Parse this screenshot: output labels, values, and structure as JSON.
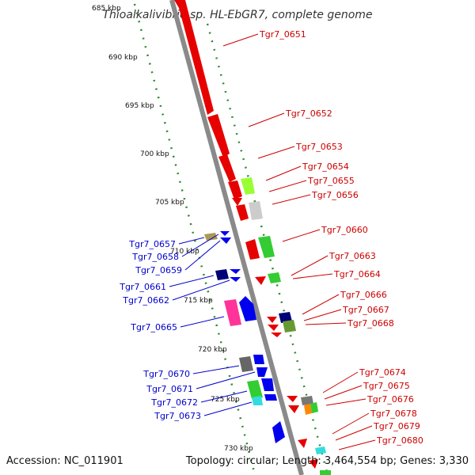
{
  "title": "Thioalkalivibrio sp. HL-EbGR7, complete genome",
  "accession": "Accession: NC_011901",
  "topology": "Topology: circular; Length: 3,464,554 bp; Genes: 3,330",
  "colors": {
    "forward_label": "#cc0000",
    "reverse_label": "#0000cc",
    "backbone": "#888888",
    "ticks": "#2e8b2e"
  },
  "ticks": [
    "685 kbp",
    "690 kbp",
    "695 kbp",
    "700 kbp",
    "705 kbp",
    "710 kbp",
    "715 kbp",
    "720 kbp",
    "725 kbp",
    "730 kbp"
  ],
  "forward_labels": [
    "Tgr7_0651",
    "Tgr7_0652",
    "Tgr7_0653",
    "Tgr7_0654",
    "Tgr7_0655",
    "Tgr7_0656",
    "Tgr7_0660",
    "Tgr7_0663",
    "Tgr7_0664",
    "Tgr7_0666",
    "Tgr7_0667",
    "Tgr7_0668",
    "Tgr7_0674",
    "Tgr7_0675",
    "Tgr7_0676",
    "Tgr7_0678",
    "Tgr7_0679",
    "Tgr7_0680"
  ],
  "reverse_labels": [
    "Tgr7_0657",
    "Tgr7_0658",
    "Tgr7_0659",
    "Tgr7_0661",
    "Tgr7_0662",
    "Tgr7_0665",
    "Tgr7_0670",
    "Tgr7_0671",
    "Tgr7_0672",
    "Tgr7_0673"
  ]
}
